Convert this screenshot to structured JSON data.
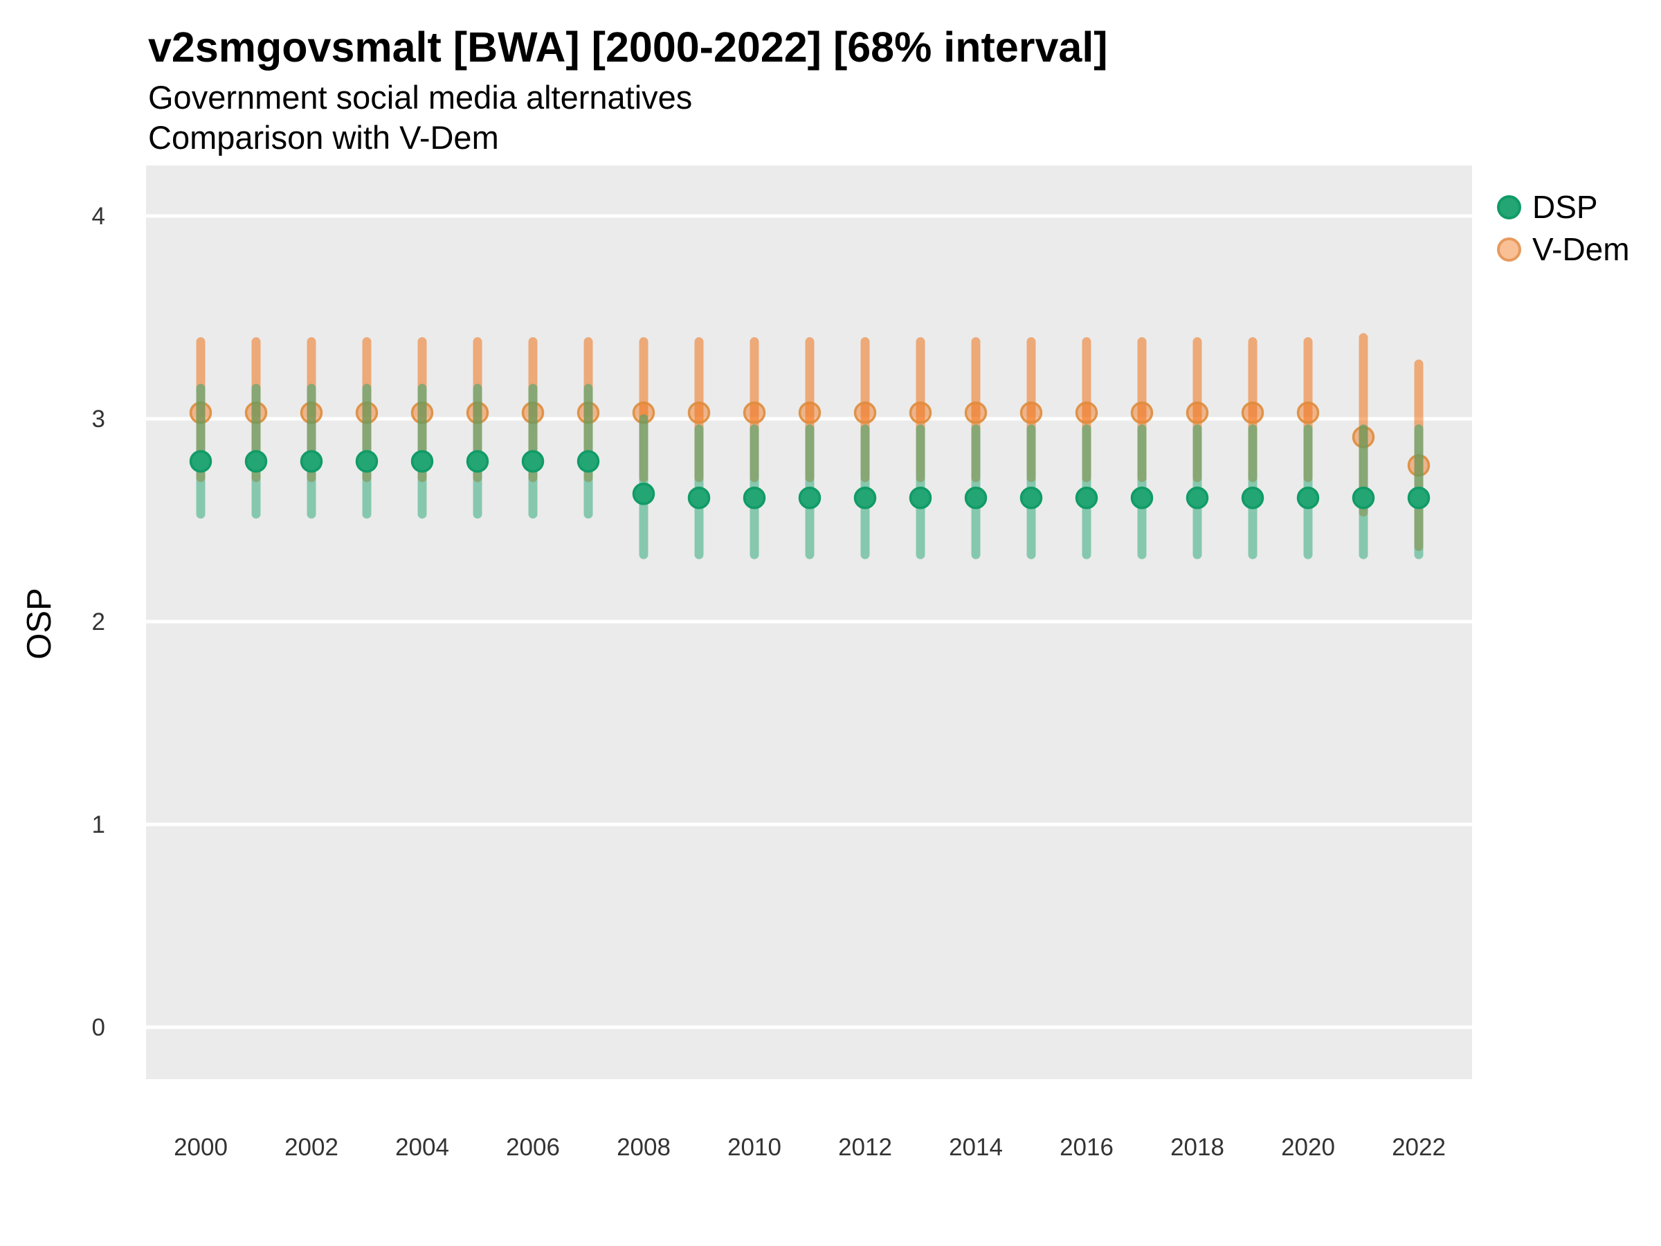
{
  "header": {
    "title": "v2smgovsmalt [BWA] [2000-2022] [68% interval]",
    "subtitle1": "Government social media alternatives",
    "subtitle2": "Comparison with V-Dem"
  },
  "axes": {
    "y_title": "OSP"
  },
  "legend": {
    "position": "right",
    "items": [
      {
        "label": "DSP",
        "fill": "#23a674",
        "border": "#119b67"
      },
      {
        "label": "V-Dem",
        "fill": "#f9c096",
        "border": "#e79a5e"
      }
    ]
  },
  "colors": {
    "panel_background": "#ebebeb",
    "gridline": "#ffffff",
    "dsp_base": "#21a672",
    "dsp_point_fill": "#23a674",
    "dsp_point_stroke": "#119b67",
    "vdem_base": "#f06806",
    "vdem_point_stroke": "#de8c44"
  },
  "chart_data": {
    "type": "pointrange",
    "title": "v2smgovsmalt [BWA] [2000-2022] [68% interval]",
    "subtitle": [
      "Government social media alternatives",
      "Comparison with V-Dem"
    ],
    "xlabel": "",
    "ylabel": "OSP",
    "interval": "68%",
    "grid": "major horizontal white lines on gray panel",
    "legend_position": "right",
    "ylim": [
      -0.25,
      4.25
    ],
    "y_ticks": [
      0,
      1,
      2,
      3,
      4
    ],
    "x_tick_labels": [
      2000,
      2002,
      2004,
      2006,
      2008,
      2010,
      2012,
      2014,
      2016,
      2018,
      2020,
      2022
    ],
    "x": [
      2000,
      2001,
      2002,
      2003,
      2004,
      2005,
      2006,
      2007,
      2008,
      2009,
      2010,
      2011,
      2012,
      2013,
      2014,
      2015,
      2016,
      2017,
      2018,
      2019,
      2020,
      2021,
      2022
    ],
    "series": [
      {
        "name": "DSP",
        "point": [
          2.79,
          2.79,
          2.79,
          2.79,
          2.79,
          2.79,
          2.79,
          2.79,
          2.63,
          2.61,
          2.61,
          2.61,
          2.61,
          2.61,
          2.61,
          2.61,
          2.61,
          2.61,
          2.61,
          2.61,
          2.61,
          2.61,
          2.61
        ],
        "lower68": [
          2.53,
          2.53,
          2.53,
          2.53,
          2.53,
          2.53,
          2.53,
          2.53,
          2.33,
          2.33,
          2.33,
          2.33,
          2.33,
          2.33,
          2.33,
          2.33,
          2.33,
          2.33,
          2.33,
          2.33,
          2.33,
          2.33,
          2.33
        ],
        "upper68": [
          3.15,
          3.15,
          3.15,
          3.15,
          3.15,
          3.15,
          3.15,
          3.15,
          3.0,
          2.95,
          2.95,
          2.95,
          2.95,
          2.95,
          2.95,
          2.95,
          2.95,
          2.95,
          2.95,
          2.95,
          2.95,
          2.95,
          2.95
        ]
      },
      {
        "name": "V-Dem",
        "point": [
          3.03,
          3.03,
          3.03,
          3.03,
          3.03,
          3.03,
          3.03,
          3.03,
          3.03,
          3.03,
          3.03,
          3.03,
          3.03,
          3.03,
          3.03,
          3.03,
          3.03,
          3.03,
          3.03,
          3.03,
          3.03,
          2.91,
          2.77
        ],
        "lower68": [
          2.71,
          2.71,
          2.71,
          2.71,
          2.71,
          2.71,
          2.71,
          2.71,
          2.71,
          2.71,
          2.71,
          2.71,
          2.71,
          2.71,
          2.71,
          2.71,
          2.71,
          2.71,
          2.71,
          2.71,
          2.71,
          2.54,
          2.37
        ],
        "upper68": [
          3.38,
          3.38,
          3.38,
          3.38,
          3.38,
          3.38,
          3.38,
          3.38,
          3.38,
          3.38,
          3.38,
          3.38,
          3.38,
          3.38,
          3.38,
          3.38,
          3.38,
          3.38,
          3.38,
          3.38,
          3.38,
          3.4,
          3.27
        ]
      }
    ]
  }
}
